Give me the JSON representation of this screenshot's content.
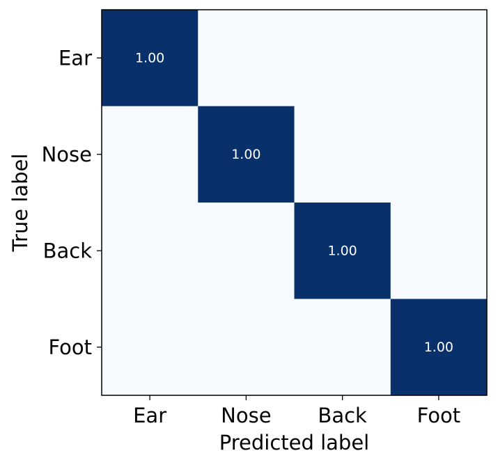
{
  "chart_data": {
    "type": "heatmap",
    "title": "",
    "xlabel": "Predicted label",
    "ylabel": "True label",
    "x_categories": [
      "Ear",
      "Nose",
      "Back",
      "Foot"
    ],
    "y_categories": [
      "Ear",
      "Nose",
      "Back",
      "Foot"
    ],
    "values": [
      [
        1.0,
        0.0,
        0.0,
        0.0
      ],
      [
        0.0,
        1.0,
        0.0,
        0.0
      ],
      [
        0.0,
        0.0,
        1.0,
        0.0
      ],
      [
        0.0,
        0.0,
        0.0,
        1.0
      ]
    ],
    "value_format": "2-decimal",
    "shown_cell_labels": [
      {
        "row": 0,
        "col": 0,
        "text": "1.00"
      },
      {
        "row": 1,
        "col": 1,
        "text": "1.00"
      },
      {
        "row": 2,
        "col": 2,
        "text": "1.00"
      },
      {
        "row": 3,
        "col": 3,
        "text": "1.00"
      }
    ],
    "colormap": {
      "low": "#f7fbff",
      "high": "#08306b"
    },
    "annotation_color": "#ffffff",
    "range": [
      0,
      1
    ],
    "grid": false,
    "legend": "none"
  }
}
